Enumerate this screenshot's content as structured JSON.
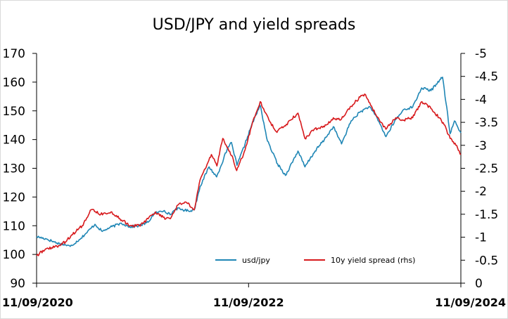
{
  "chart_data": {
    "type": "line",
    "title": "USD/JPY and yield spreads",
    "x_tick_labels": [
      "11/09/2020",
      "11/09/2022",
      "11/09/2024"
    ],
    "x_range": [
      "2020-09-11",
      "2024-09-11"
    ],
    "y_left": {
      "min": 90,
      "max": 170,
      "ticks": [
        "90",
        "100",
        "110",
        "120",
        "130",
        "140",
        "150",
        "160",
        "170"
      ]
    },
    "y_right": {
      "min": 0,
      "max": -5,
      "inverted": true,
      "ticks": [
        "0",
        "-0.5",
        "-1",
        "-1.5",
        "-2",
        "-2.5",
        "-3",
        "-3.5",
        "-4",
        "-4.5",
        "-5"
      ]
    },
    "grid": false,
    "legend_position": "bottom-right inside plot",
    "series": [
      {
        "name": "usd/jpy",
        "axis": "left",
        "color": "#1f86b5",
        "points": [
          [
            "2020-09-11",
            106.2
          ],
          [
            "2020-10-15",
            105.4
          ],
          [
            "2020-11-20",
            104.0
          ],
          [
            "2020-12-20",
            103.3
          ],
          [
            "2021-01-05",
            102.8
          ],
          [
            "2021-02-05",
            105.2
          ],
          [
            "2021-03-01",
            107.4
          ],
          [
            "2021-03-31",
            110.5
          ],
          [
            "2021-04-25",
            108.0
          ],
          [
            "2021-05-20",
            109.3
          ],
          [
            "2021-06-30",
            110.9
          ],
          [
            "2021-07-30",
            109.6
          ],
          [
            "2021-08-31",
            110.0
          ],
          [
            "2021-09-30",
            111.2
          ],
          [
            "2021-10-20",
            114.2
          ],
          [
            "2021-11-25",
            115.3
          ],
          [
            "2021-12-15",
            113.8
          ],
          [
            "2022-01-04",
            116.0
          ],
          [
            "2022-02-15",
            115.2
          ],
          [
            "2022-03-08",
            115.5
          ],
          [
            "2022-03-28",
            123.7
          ],
          [
            "2022-04-28",
            130.5
          ],
          [
            "2022-05-24",
            127.0
          ],
          [
            "2022-06-29",
            136.5
          ],
          [
            "2022-07-14",
            139.0
          ],
          [
            "2022-08-02",
            131.0
          ],
          [
            "2022-08-30",
            138.5
          ],
          [
            "2022-09-22",
            145.2
          ],
          [
            "2022-10-21",
            151.9
          ],
          [
            "2022-11-15",
            139.5
          ],
          [
            "2022-12-20",
            131.5
          ],
          [
            "2023-01-16",
            127.5
          ],
          [
            "2023-02-28",
            136.0
          ],
          [
            "2023-03-24",
            130.5
          ],
          [
            "2023-04-28",
            136.0
          ],
          [
            "2023-05-30",
            140.0
          ],
          [
            "2023-06-30",
            144.5
          ],
          [
            "2023-07-28",
            138.5
          ],
          [
            "2023-08-30",
            146.5
          ],
          [
            "2023-09-29",
            149.5
          ],
          [
            "2023-10-31",
            151.5
          ],
          [
            "2023-11-28",
            147.5
          ],
          [
            "2023-12-28",
            141.0
          ],
          [
            "2024-01-31",
            147.0
          ],
          [
            "2024-02-28",
            150.5
          ],
          [
            "2024-03-29",
            151.3
          ],
          [
            "2024-04-29",
            158.0
          ],
          [
            "2024-05-31",
            157.0
          ],
          [
            "2024-06-30",
            160.8
          ],
          [
            "2024-07-10",
            161.7
          ],
          [
            "2024-08-05",
            142.0
          ],
          [
            "2024-08-20",
            146.5
          ],
          [
            "2024-09-11",
            142.3
          ]
        ]
      },
      {
        "name": "10y yield spread (rhs)",
        "axis": "right",
        "color": "#d7191c",
        "points": [
          [
            "2020-09-11",
            -0.6
          ],
          [
            "2020-10-15",
            -0.75
          ],
          [
            "2020-11-20",
            -0.8
          ],
          [
            "2020-12-20",
            -0.9
          ],
          [
            "2021-01-10",
            -1.05
          ],
          [
            "2021-02-15",
            -1.25
          ],
          [
            "2021-03-18",
            -1.6
          ],
          [
            "2021-04-20",
            -1.5
          ],
          [
            "2021-05-25",
            -1.55
          ],
          [
            "2021-06-25",
            -1.4
          ],
          [
            "2021-07-30",
            -1.25
          ],
          [
            "2021-08-31",
            -1.25
          ],
          [
            "2021-09-30",
            -1.4
          ],
          [
            "2021-10-25",
            -1.55
          ],
          [
            "2021-11-30",
            -1.4
          ],
          [
            "2021-12-15",
            -1.4
          ],
          [
            "2022-01-10",
            -1.7
          ],
          [
            "2022-02-10",
            -1.75
          ],
          [
            "2022-03-08",
            -1.6
          ],
          [
            "2022-03-28",
            -2.25
          ],
          [
            "2022-05-06",
            -2.8
          ],
          [
            "2022-05-25",
            -2.55
          ],
          [
            "2022-06-14",
            -3.15
          ],
          [
            "2022-07-20",
            -2.7
          ],
          [
            "2022-08-01",
            -2.45
          ],
          [
            "2022-08-30",
            -2.9
          ],
          [
            "2022-09-27",
            -3.55
          ],
          [
            "2022-10-21",
            -3.95
          ],
          [
            "2022-11-20",
            -3.55
          ],
          [
            "2022-12-15",
            -3.3
          ],
          [
            "2023-01-10",
            -3.4
          ],
          [
            "2023-02-28",
            -3.7
          ],
          [
            "2023-03-24",
            -3.15
          ],
          [
            "2023-04-25",
            -3.35
          ],
          [
            "2023-05-30",
            -3.4
          ],
          [
            "2023-06-30",
            -3.6
          ],
          [
            "2023-07-25",
            -3.55
          ],
          [
            "2023-08-30",
            -3.85
          ],
          [
            "2023-09-30",
            -4.05
          ],
          [
            "2023-10-19",
            -4.1
          ],
          [
            "2023-11-20",
            -3.7
          ],
          [
            "2023-12-28",
            -3.35
          ],
          [
            "2024-01-31",
            -3.6
          ],
          [
            "2024-02-28",
            -3.55
          ],
          [
            "2024-03-29",
            -3.6
          ],
          [
            "2024-04-30",
            -3.95
          ],
          [
            "2024-05-31",
            -3.8
          ],
          [
            "2024-06-28",
            -3.6
          ],
          [
            "2024-07-15",
            -3.45
          ],
          [
            "2024-08-05",
            -3.15
          ],
          [
            "2024-08-25",
            -3.0
          ],
          [
            "2024-09-11",
            -2.8
          ]
        ]
      }
    ]
  }
}
